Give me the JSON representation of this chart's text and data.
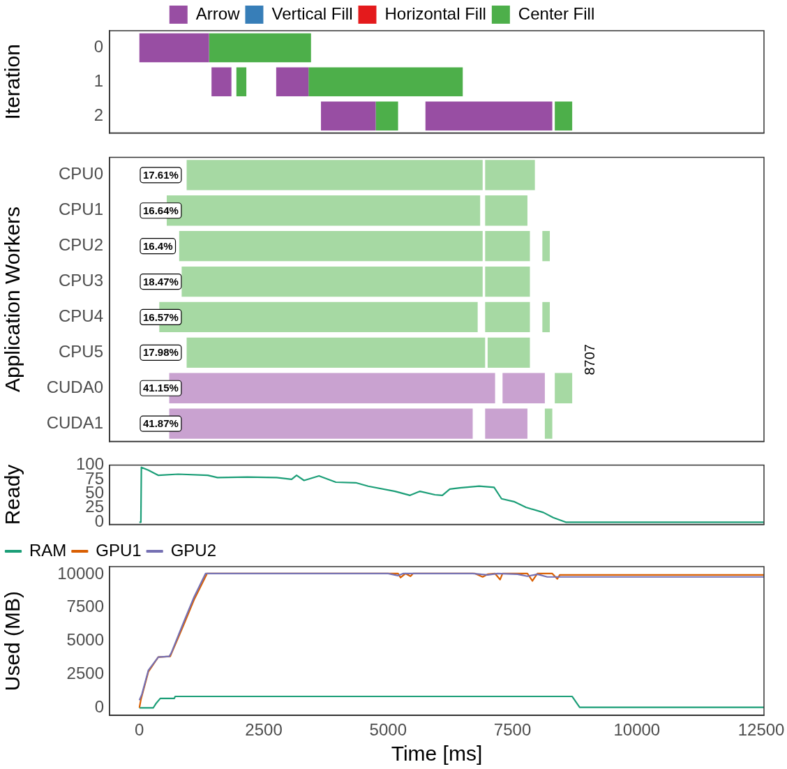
{
  "chart_data": [
    {
      "type": "bar",
      "orientation": "horizontal",
      "ylabel": "Iteration",
      "categories": [
        "0",
        "1",
        "2"
      ],
      "xlim": [
        -600,
        12555
      ],
      "xticks": [
        0,
        2500,
        5000,
        7500,
        10000,
        12500
      ],
      "tick_labels": "y",
      "legend": "top",
      "series": [
        {
          "name": "Arrow",
          "color": "#984ea3",
          "base": [
            0,
            1450,
            3650
          ],
          "values": [
            1400,
            400,
            1100
          ]
        },
        {
          "name": "Vertical Fill",
          "color": "#377eb8",
          "base": [
            null,
            null,
            null
          ],
          "values": [
            null,
            null,
            null
          ]
        },
        {
          "name": "Horizontal Fill",
          "color": "#e41a1c",
          "base": [
            null,
            null,
            null
          ],
          "values": [
            null,
            null,
            null
          ]
        },
        {
          "name": "Center Fill",
          "color": "#4daf4a",
          "base": [
            1400,
            1950,
            4750
          ],
          "values": [
            2050,
            200,
            450
          ]
        },
        {
          "color": "#984ea3",
          "base": [
            null,
            2750,
            5750
          ],
          "values": [
            null,
            650,
            2550
          ]
        },
        {
          "color": "#4daf4a",
          "base": [
            null,
            3400,
            8350
          ],
          "values": [
            null,
            3100,
            350
          ]
        }
      ]
    },
    {
      "type": "bar",
      "orientation": "horizontal",
      "ylabel": "Application Workers",
      "categories": [
        "CPU0",
        "CPU1",
        "CPU2",
        "CPU3",
        "CPU4",
        "CPU5",
        "CUDA0",
        "CUDA1"
      ],
      "xlim": [
        -600,
        12555
      ],
      "xticks": [
        0,
        2500,
        5000,
        7500,
        10000,
        12500
      ],
      "tick_labels": "y",
      "series": [
        {
          "color": "#a6d9a3",
          "base": [
            950,
            550,
            800,
            850,
            400,
            950,
            null,
            null
          ],
          "values": [
            5950,
            6300,
            6100,
            6050,
            6400,
            6000,
            null,
            null
          ]
        },
        {
          "color": "#a6d9a3",
          "base": [
            6950,
            6950,
            6950,
            6950,
            6950,
            7000,
            null,
            null
          ],
          "values": [
            1000,
            850,
            900,
            900,
            900,
            850,
            null,
            null
          ]
        },
        {
          "color": "#a6d9a3",
          "base": [
            null,
            null,
            8100,
            null,
            8100,
            null,
            null,
            null
          ],
          "values": [
            null,
            null,
            150,
            null,
            150,
            null,
            null,
            null
          ]
        },
        {
          "color": "#c9a2d0",
          "base": [
            null,
            null,
            null,
            null,
            null,
            null,
            600,
            600
          ],
          "values": [
            null,
            null,
            null,
            null,
            null,
            null,
            6550,
            6100
          ]
        },
        {
          "color": "#c9a2d0",
          "base": [
            null,
            null,
            null,
            null,
            null,
            null,
            7300,
            6950
          ],
          "values": [
            null,
            null,
            null,
            null,
            null,
            null,
            850,
            850
          ]
        },
        {
          "color": "#a6d9a3",
          "base": [
            null,
            null,
            null,
            null,
            null,
            null,
            8350,
            8150
          ],
          "values": [
            null,
            null,
            null,
            null,
            null,
            null,
            350,
            150
          ]
        }
      ],
      "annotations": [
        "17.61%",
        "16.64%",
        "16.4%",
        "18.47%",
        "16.57%",
        "17.98%",
        "41.15%",
        "41.87%",
        "8707"
      ]
    },
    {
      "type": "line",
      "ylabel": "Ready",
      "xlim": [
        -600,
        12555
      ],
      "xticks": [
        0,
        2500,
        5000,
        7500,
        10000,
        12500
      ],
      "ylim": [
        -4,
        100
      ],
      "yticks": [
        0,
        25,
        50,
        75,
        100
      ],
      "tick_labels": "y",
      "x": [
        0,
        30,
        40,
        180,
        383,
        780,
        1375,
        1570,
        2170,
        2760,
        3060,
        3160,
        3310,
        3610,
        3950,
        4350,
        4600,
        5140,
        5440,
        5640,
        5940,
        6090,
        6240,
        6440,
        6830,
        7130,
        7280,
        7530,
        7770,
        8120,
        8320,
        8570,
        12555
      ],
      "series": [
        {
          "color": "#1b9e77",
          "values": [
            0,
            0,
            96,
            91,
            82,
            84,
            82,
            78,
            79,
            78,
            75,
            82,
            73,
            81,
            70,
            69,
            63,
            54,
            47,
            54,
            48,
            47,
            58,
            60,
            63,
            61,
            41,
            36,
            26,
            17,
            8,
            0,
            0
          ]
        }
      ]
    },
    {
      "type": "line",
      "xlabel": "Time [ms]",
      "ylabel": "Used (MB)",
      "xlim": [
        -600,
        12555
      ],
      "xticks": [
        0,
        2500,
        5000,
        7500,
        10000,
        {
          "value": 12500,
          "label": "12500"
        }
      ],
      "ylim": [
        -570,
        10570
      ],
      "yticks": [
        0,
        2500,
        5000,
        7500,
        10000
      ],
      "legend": "top left",
      "series": [
        {
          "name": "RAM",
          "color": "#1b9e77",
          "x": [
            0,
            280,
            330,
            420,
            700,
            720,
            8700,
            8850,
            12555
          ],
          "values": [
            0,
            0,
            300,
            700,
            700,
            850,
            850,
            30,
            30
          ]
        },
        {
          "name": "GPU1",
          "color": "#d95f02",
          "x": [
            0,
            30,
            180,
            380,
            620,
            660,
            900,
            1100,
            1360,
            5200,
            5250,
            5350,
            5450,
            5500,
            6750,
            6900,
            7000,
            7150,
            7250,
            7300,
            7800,
            7900,
            8000,
            8300,
            8400,
            8450,
            12555
          ],
          "values": [
            0,
            600,
            2700,
            3800,
            3850,
            4200,
            6300,
            8100,
            10050,
            10050,
            9750,
            10050,
            9850,
            10050,
            10050,
            9800,
            10000,
            10050,
            9600,
            10050,
            10050,
            9500,
            10050,
            10050,
            9650,
            9950,
            9950
          ]
        },
        {
          "name": "GPU2",
          "color": "#7570b3",
          "x": [
            0,
            50,
            180,
            380,
            600,
            640,
            900,
            1100,
            1330,
            5000,
            5200,
            5300,
            6700,
            7000,
            7200,
            7600,
            7800,
            8000,
            8200,
            8400,
            12555
          ],
          "values": [
            570,
            1000,
            2800,
            3800,
            3850,
            4100,
            6500,
            8300,
            10050,
            10050,
            9900,
            10050,
            10050,
            9950,
            10050,
            10000,
            9850,
            10000,
            9800,
            9800,
            9800
          ]
        }
      ]
    }
  ]
}
